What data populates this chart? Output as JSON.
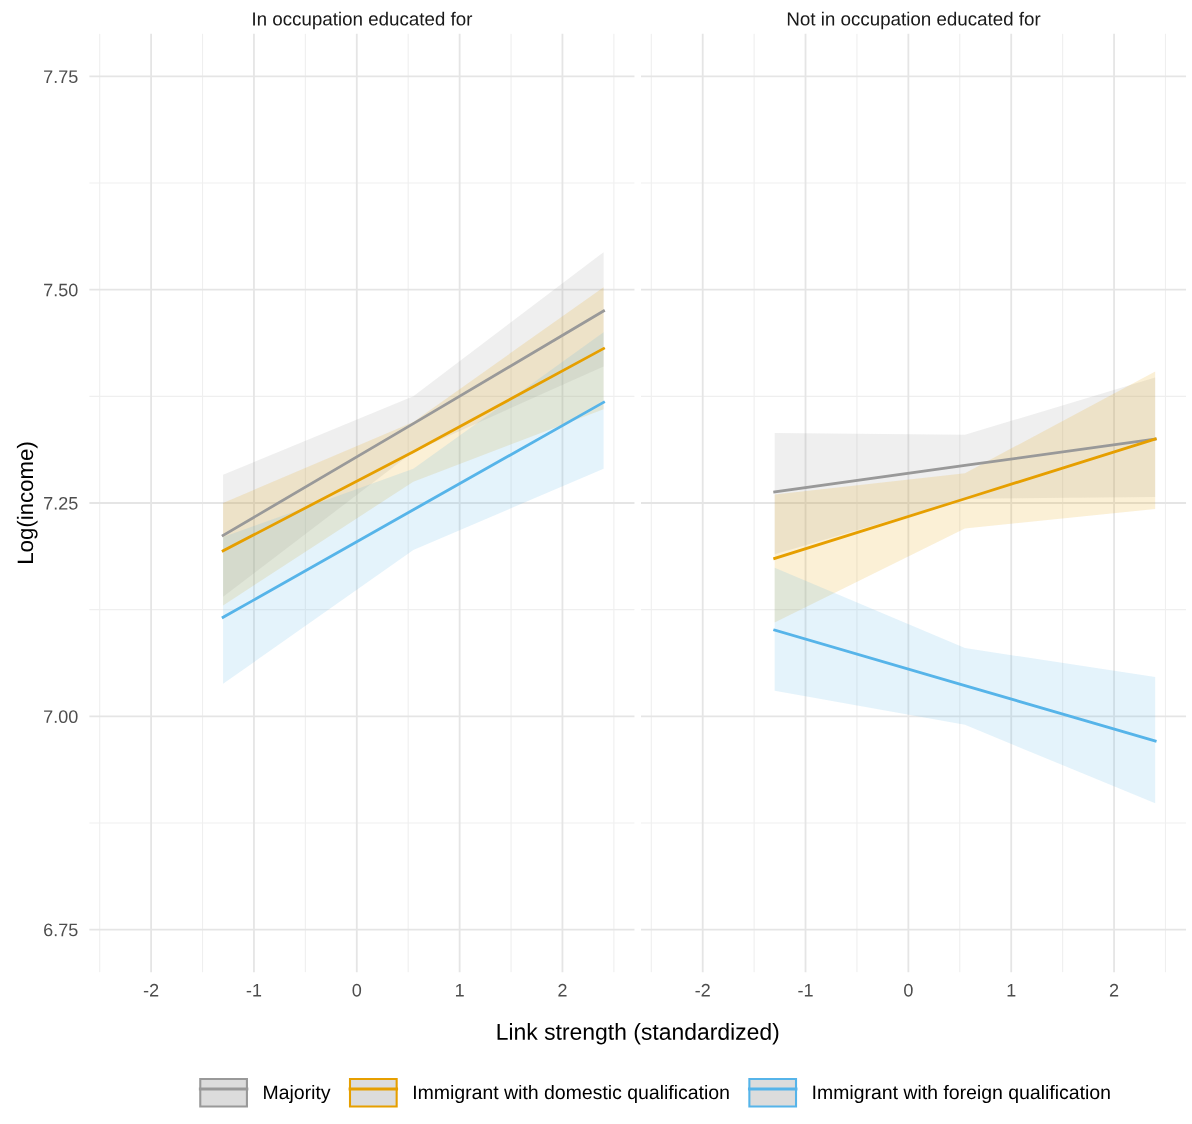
{
  "chart_data": [
    {
      "type": "line",
      "title": "In occupation educated for",
      "xlabel": "Link strength (standardized)",
      "ylabel": "Log(income)",
      "legend": "bottom",
      "grid": true,
      "marker": "none",
      "line_style": "solid",
      "xlim": [
        -2.6,
        2.7
      ],
      "xticks": [
        -2,
        -1,
        0,
        1,
        2
      ],
      "ylim": [
        6.7,
        7.8
      ],
      "yticks": [
        {
          "value": 6.75,
          "label": "6.75"
        },
        {
          "value": 7.0,
          "label": "7.00"
        },
        {
          "value": 7.25,
          "label": "7.25"
        },
        {
          "value": 7.5,
          "label": "7.50"
        },
        {
          "value": 7.75,
          "label": "7.75"
        }
      ],
      "series": [
        {
          "name": "Majority",
          "color": "#999999",
          "x": [
            -1.3,
            0.55,
            2.4
          ],
          "values": [
            7.212,
            7.343,
            7.475
          ],
          "lower": [
            7.14,
            7.31,
            7.41
          ],
          "upper": [
            7.283,
            7.375,
            7.544
          ]
        },
        {
          "name": "Immigrant with domestic qualification",
          "color": "#E69F00",
          "x": [
            -1.3,
            0.55,
            2.4
          ],
          "values": [
            7.194,
            7.31,
            7.431
          ],
          "lower": [
            7.13,
            7.275,
            7.36
          ],
          "upper": [
            7.25,
            7.345,
            7.503
          ]
        },
        {
          "name": "Immigrant with foreign qualification",
          "color": "#56B4E9",
          "x": [
            -1.3,
            0.55,
            2.4
          ],
          "values": [
            7.116,
            7.242,
            7.368
          ],
          "lower": [
            7.038,
            7.195,
            7.29
          ],
          "upper": [
            7.21,
            7.29,
            7.45
          ]
        }
      ]
    },
    {
      "type": "line",
      "title": "Not in occupation educated for",
      "grid": true,
      "marker": "none",
      "line_style": "solid",
      "tick_labels": "x",
      "xlim": [
        -2.6,
        2.7
      ],
      "xticks": [
        -2,
        -1,
        0,
        1,
        2
      ],
      "ylim": [
        6.7,
        7.8
      ],
      "yticks": [
        6.75,
        7.0,
        7.25,
        7.5,
        7.75
      ],
      "series": [
        {
          "color": "#999999",
          "x": [
            -1.3,
            0.55,
            2.4
          ],
          "values": [
            7.263,
            7.294,
            7.325
          ],
          "lower": [
            7.19,
            7.255,
            7.257
          ],
          "upper": [
            7.332,
            7.33,
            7.397
          ]
        },
        {
          "color": "#E69F00",
          "x": [
            -1.3,
            0.55,
            2.4
          ],
          "values": [
            7.185,
            7.255,
            7.325
          ],
          "lower": [
            7.11,
            7.22,
            7.243
          ],
          "upper": [
            7.26,
            7.285,
            7.404
          ]
        },
        {
          "color": "#56B4E9",
          "x": [
            -1.3,
            0.55,
            2.4
          ],
          "values": [
            7.101,
            7.036,
            6.971
          ],
          "lower": [
            7.03,
            6.99,
            6.898
          ],
          "upper": [
            7.174,
            7.08,
            7.046
          ]
        }
      ]
    }
  ]
}
